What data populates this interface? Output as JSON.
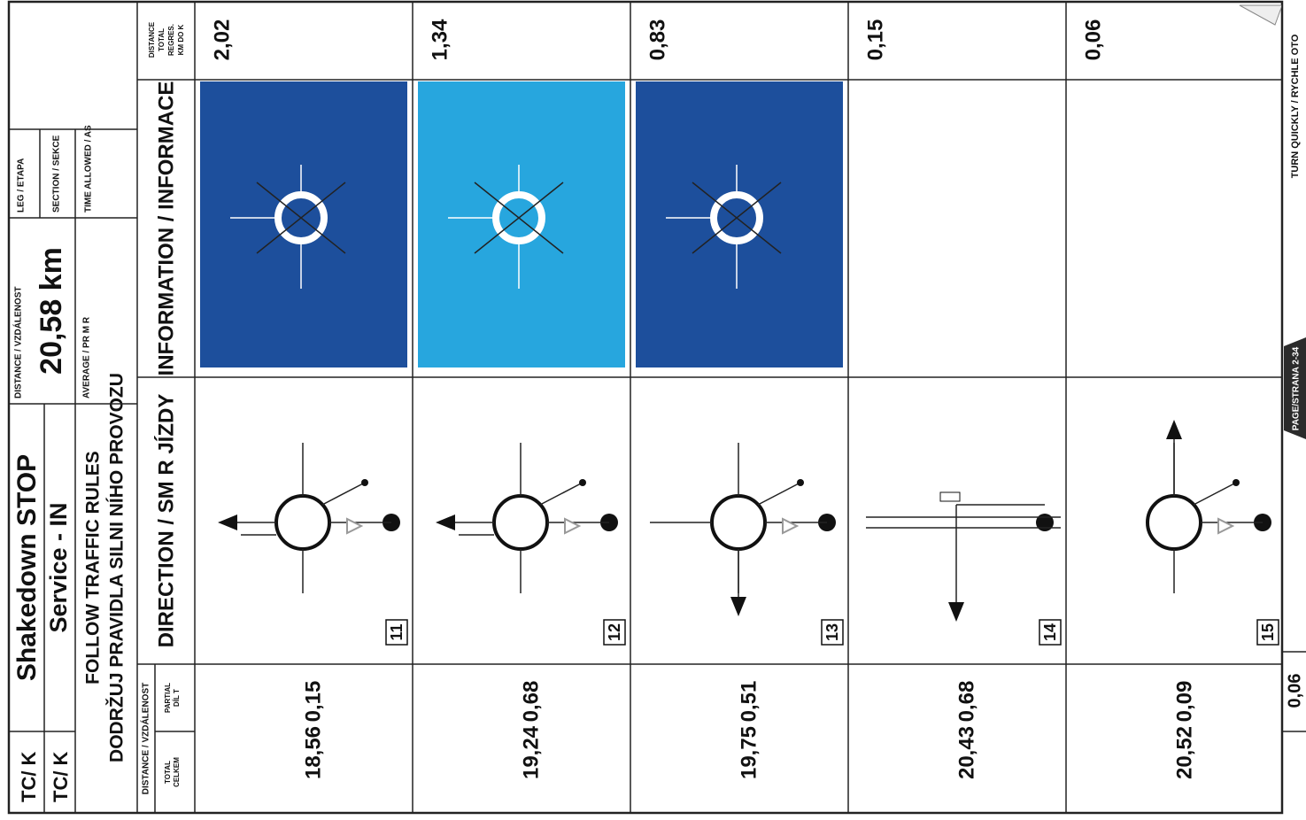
{
  "header": {
    "tc1": "TC/  K",
    "title": "Shakedown STOP",
    "tc2": "TC/  K",
    "subtitle": "Service - IN",
    "rule1": "FOLLOW TRAFFIC RULES",
    "rule2": "DODRŽUJ PRAVIDLA SILNI  NÍHO PROVOZU",
    "distance_label": "DISTANCE / VZDÁLENOST",
    "distance": "20,58 km",
    "average_label": "AVERAGE / PR  M  R",
    "leg_label": "LEG / ETAPA",
    "section_label": "SECTION / SEKCE",
    "time_label": "TIME ALLOWED /  AS"
  },
  "columns": {
    "distance": "DISTANCE / VZDÁLENOST",
    "total": [
      "TOTAL",
      "CELKEM"
    ],
    "partial": [
      "PARTIAL",
      "DÍL  T"
    ],
    "direction": "DIRECTION / SM  R JÍZDY",
    "information": "INFORMATION / INFORMACE",
    "remaining": [
      "DISTANCE",
      "TOTAL",
      "REGRES.",
      "KM DO  K"
    ]
  },
  "rows": [
    {
      "total": "18,56",
      "partial": "0,15",
      "number": "11",
      "remaining": "2,02"
    },
    {
      "total": "19,24",
      "partial": "0,68",
      "number": "12",
      "remaining": "1,34"
    },
    {
      "total": "19,75",
      "partial": "0,51",
      "number": "13",
      "remaining": "0,83"
    },
    {
      "total": "20,43",
      "partial": "0,68",
      "number": "14",
      "remaining": "0,15"
    },
    {
      "total": "20,52",
      "partial": "0,09",
      "number": "15",
      "remaining": "0,06"
    }
  ],
  "footer": {
    "partial": "0,06",
    "page": "PAGE/STRANA 2-34",
    "note": "TURN QUICKLY / RYCHLE OTO"
  }
}
